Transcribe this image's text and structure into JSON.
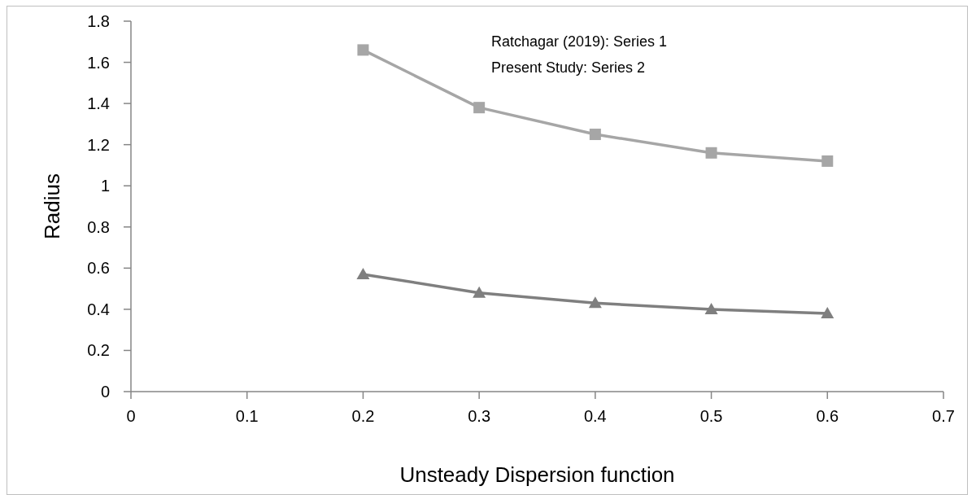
{
  "chart_data": {
    "type": "line",
    "xlabel": "Unsteady Dispersion function",
    "ylabel": "Radius",
    "annotations": [
      "Ratchagar (2019): Series 1",
      "Present Study: Series 2"
    ],
    "x": [
      0.2,
      0.3,
      0.4,
      0.5,
      0.6
    ],
    "series": [
      {
        "color": "#a6a6a6",
        "marker": "square",
        "values": [
          1.66,
          1.38,
          1.25,
          1.16,
          1.12
        ]
      },
      {
        "color": "#7f7f7f",
        "marker": "triangle",
        "values": [
          0.57,
          0.48,
          0.43,
          0.4,
          0.38
        ]
      }
    ],
    "xlim": [
      0,
      0.7
    ],
    "xticks": [
      0,
      0.1,
      0.2,
      0.3,
      0.4,
      0.5,
      0.6,
      0.7
    ],
    "ylim": [
      0,
      1.8
    ],
    "yticks": [
      0,
      0.2,
      0.4,
      0.6,
      0.8,
      1,
      1.2,
      1.4,
      1.6,
      1.8
    ],
    "grid": false,
    "line_style": "solid"
  }
}
